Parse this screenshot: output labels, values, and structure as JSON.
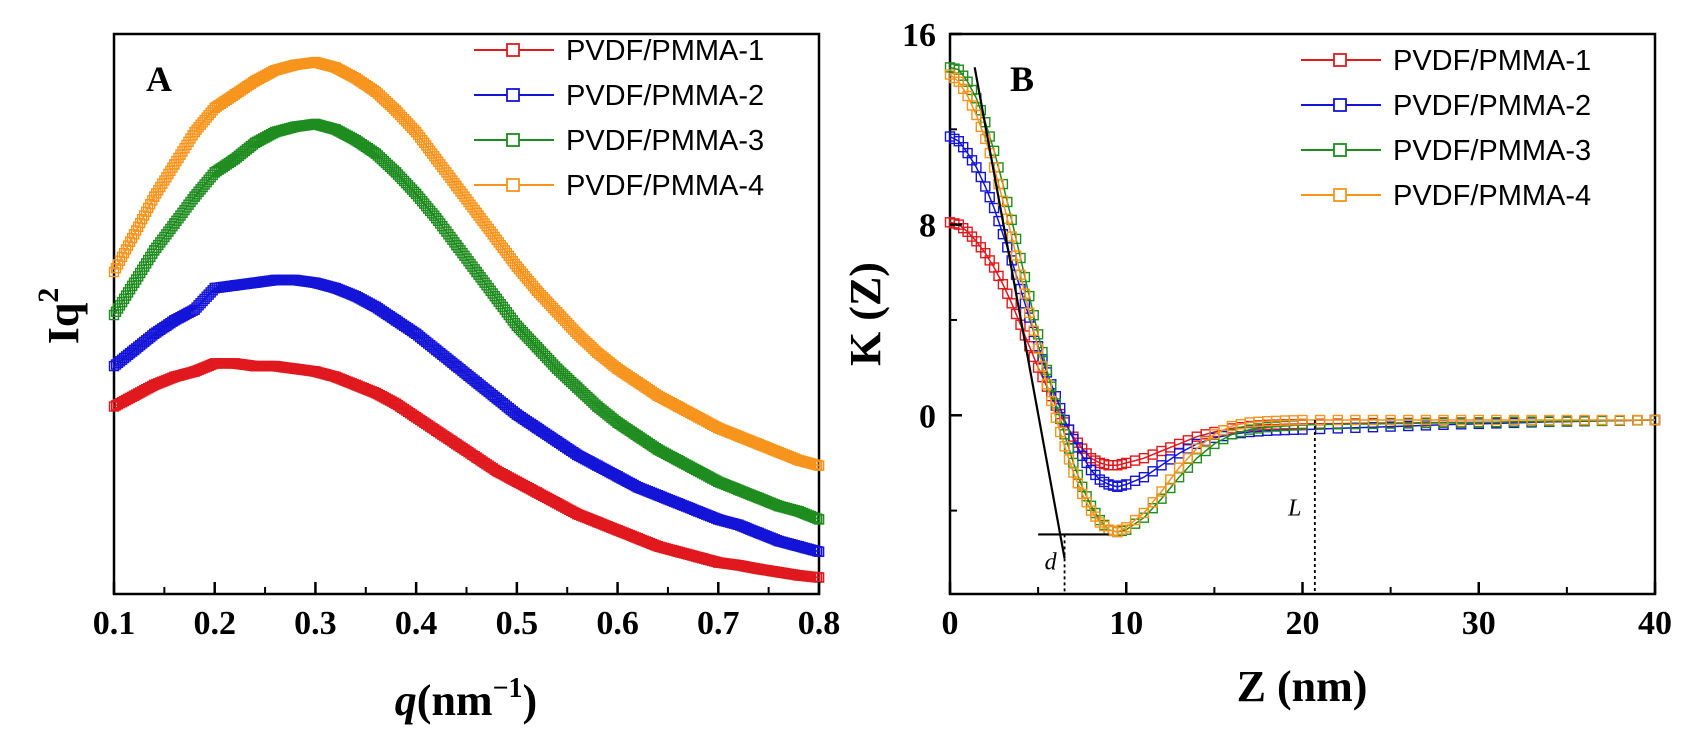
{
  "chart_data": [
    {
      "type": "scatter",
      "panel_label": "A",
      "xlabel_main": "q",
      "xlabel_unit": "(nm",
      "xlabel_exp": "−1",
      "xlabel_close": ")",
      "ylabel_main": "Iq",
      "ylabel_exp": "2",
      "xlim": [
        0.1,
        0.8
      ],
      "ylim": [
        0,
        1
      ],
      "yticks_shown": false,
      "xticks": [
        "0.1",
        "0.2",
        "0.3",
        "0.4",
        "0.5",
        "0.6",
        "0.7",
        "0.8"
      ],
      "legend_position": "top-right",
      "marker": "open-square",
      "series": [
        {
          "name": "PVDF/PMMA-1",
          "color": "#e0191e",
          "x": [
            0.1,
            0.12,
            0.14,
            0.16,
            0.18,
            0.2,
            0.22,
            0.24,
            0.26,
            0.28,
            0.3,
            0.32,
            0.34,
            0.36,
            0.38,
            0.4,
            0.42,
            0.44,
            0.46,
            0.48,
            0.5,
            0.52,
            0.54,
            0.56,
            0.58,
            0.6,
            0.62,
            0.64,
            0.66,
            0.68,
            0.7,
            0.72,
            0.74,
            0.76,
            0.78,
            0.8
          ],
          "y": [
            0.33,
            0.35,
            0.37,
            0.385,
            0.395,
            0.41,
            0.41,
            0.405,
            0.405,
            0.4,
            0.395,
            0.385,
            0.37,
            0.355,
            0.335,
            0.31,
            0.285,
            0.26,
            0.235,
            0.21,
            0.19,
            0.17,
            0.15,
            0.13,
            0.115,
            0.1,
            0.085,
            0.07,
            0.06,
            0.05,
            0.04,
            0.035,
            0.028,
            0.022,
            0.016,
            0.012
          ]
        },
        {
          "name": "PVDF/PMMA-2",
          "color": "#1414d8",
          "x": [
            0.1,
            0.12,
            0.14,
            0.16,
            0.18,
            0.2,
            0.22,
            0.24,
            0.26,
            0.28,
            0.3,
            0.32,
            0.34,
            0.36,
            0.38,
            0.4,
            0.42,
            0.44,
            0.46,
            0.48,
            0.5,
            0.52,
            0.54,
            0.56,
            0.58,
            0.6,
            0.62,
            0.64,
            0.66,
            0.68,
            0.7,
            0.72,
            0.74,
            0.76,
            0.78,
            0.8
          ],
          "y": [
            0.405,
            0.435,
            0.465,
            0.49,
            0.51,
            0.55,
            0.555,
            0.56,
            0.565,
            0.565,
            0.56,
            0.55,
            0.535,
            0.515,
            0.49,
            0.465,
            0.435,
            0.405,
            0.375,
            0.345,
            0.315,
            0.29,
            0.265,
            0.24,
            0.22,
            0.2,
            0.18,
            0.165,
            0.15,
            0.135,
            0.12,
            0.11,
            0.095,
            0.08,
            0.07,
            0.06
          ]
        },
        {
          "name": "PVDF/PMMA-3",
          "color": "#1e8c1e",
          "x": [
            0.1,
            0.12,
            0.14,
            0.16,
            0.18,
            0.2,
            0.22,
            0.24,
            0.26,
            0.28,
            0.3,
            0.32,
            0.34,
            0.36,
            0.38,
            0.4,
            0.42,
            0.44,
            0.46,
            0.48,
            0.5,
            0.52,
            0.54,
            0.56,
            0.58,
            0.6,
            0.62,
            0.64,
            0.66,
            0.68,
            0.7,
            0.72,
            0.74,
            0.76,
            0.78,
            0.8
          ],
          "y": [
            0.5,
            0.56,
            0.62,
            0.67,
            0.72,
            0.765,
            0.79,
            0.82,
            0.84,
            0.85,
            0.855,
            0.845,
            0.825,
            0.8,
            0.765,
            0.725,
            0.68,
            0.63,
            0.58,
            0.53,
            0.48,
            0.44,
            0.4,
            0.365,
            0.33,
            0.3,
            0.275,
            0.25,
            0.23,
            0.21,
            0.19,
            0.175,
            0.16,
            0.145,
            0.135,
            0.12
          ]
        },
        {
          "name": "PVDF/PMMA-4",
          "color": "#f7941d",
          "x": [
            0.1,
            0.12,
            0.14,
            0.16,
            0.18,
            0.2,
            0.22,
            0.24,
            0.26,
            0.28,
            0.3,
            0.32,
            0.34,
            0.36,
            0.38,
            0.4,
            0.42,
            0.44,
            0.46,
            0.48,
            0.5,
            0.52,
            0.54,
            0.56,
            0.58,
            0.6,
            0.62,
            0.64,
            0.66,
            0.68,
            0.7,
            0.72,
            0.74,
            0.76,
            0.78,
            0.8
          ],
          "y": [
            0.58,
            0.65,
            0.72,
            0.78,
            0.84,
            0.885,
            0.91,
            0.935,
            0.955,
            0.965,
            0.97,
            0.96,
            0.94,
            0.915,
            0.88,
            0.84,
            0.79,
            0.74,
            0.69,
            0.64,
            0.59,
            0.545,
            0.505,
            0.465,
            0.43,
            0.4,
            0.375,
            0.35,
            0.33,
            0.31,
            0.29,
            0.275,
            0.26,
            0.245,
            0.23,
            0.22
          ]
        }
      ]
    },
    {
      "type": "scatter",
      "panel_label": "B",
      "xlabel": "Z (nm)",
      "ylabel": "K (Z)",
      "xlim": [
        0,
        40
      ],
      "ylim": [
        -7.5,
        16
      ],
      "xticks": [
        "0",
        "10",
        "20",
        "30",
        "40"
      ],
      "yticks": [
        "0",
        "8",
        "16"
      ],
      "legend_position": "top-right",
      "marker": "open-square",
      "annotations": [
        {
          "label": "d",
          "x": 6.5
        },
        {
          "label": "L",
          "x": 20.7
        }
      ],
      "tangent_line": {
        "x": [
          1.4,
          6.5
        ],
        "y": [
          14.6,
          -6
        ]
      },
      "baseline_segment": {
        "x": [
          5,
          9
        ],
        "y": -5
      },
      "series": [
        {
          "name": "PVDF/PMMA-1",
          "color": "#e0191e",
          "x": [
            0,
            0.5,
            1,
            1.5,
            2,
            2.5,
            3,
            3.5,
            4,
            4.5,
            5,
            5.5,
            6,
            6.5,
            7,
            7.5,
            8,
            8.5,
            9,
            9.5,
            10,
            11,
            12,
            13,
            14,
            15,
            16,
            17,
            18,
            19,
            20,
            22,
            24,
            26,
            28,
            30,
            32,
            34,
            36,
            38,
            40
          ],
          "y": [
            8.1,
            8.0,
            7.7,
            7.3,
            6.8,
            6.2,
            5.5,
            4.7,
            3.8,
            2.9,
            2.0,
            1.2,
            0.4,
            -0.3,
            -0.9,
            -1.4,
            -1.8,
            -2.0,
            -2.1,
            -2.1,
            -2.0,
            -1.8,
            -1.5,
            -1.2,
            -0.9,
            -0.7,
            -0.55,
            -0.45,
            -0.4,
            -0.38,
            -0.36,
            -0.35,
            -0.33,
            -0.32,
            -0.3,
            -0.3,
            -0.28,
            -0.26,
            -0.24,
            -0.22,
            -0.2
          ]
        },
        {
          "name": "PVDF/PMMA-2",
          "color": "#1414d8",
          "x": [
            0,
            0.5,
            1,
            1.5,
            2,
            2.5,
            3,
            3.5,
            4,
            4.5,
            5,
            5.5,
            6,
            6.5,
            7,
            7.5,
            8,
            8.5,
            9,
            9.5,
            10,
            11,
            12,
            13,
            14,
            15,
            16,
            17,
            18,
            19,
            20,
            22,
            24,
            26,
            28,
            30,
            32,
            34,
            36,
            38,
            40
          ],
          "y": [
            11.7,
            11.5,
            11.0,
            10.4,
            9.6,
            8.7,
            7.6,
            6.5,
            5.3,
            4.1,
            2.9,
            1.8,
            0.8,
            -0.2,
            -1.0,
            -1.7,
            -2.3,
            -2.7,
            -2.9,
            -3.0,
            -2.9,
            -2.6,
            -2.1,
            -1.6,
            -1.2,
            -0.95,
            -0.8,
            -0.7,
            -0.65,
            -0.62,
            -0.6,
            -0.55,
            -0.5,
            -0.45,
            -0.4,
            -0.36,
            -0.32,
            -0.28,
            -0.25,
            -0.22,
            -0.2
          ]
        },
        {
          "name": "PVDF/PMMA-3",
          "color": "#1e8c1e",
          "x": [
            0,
            0.5,
            1,
            1.5,
            2,
            2.5,
            3,
            3.5,
            4,
            4.5,
            5,
            5.5,
            6,
            6.5,
            7,
            7.5,
            8,
            8.5,
            9,
            9.5,
            10,
            11,
            12,
            13,
            14,
            15,
            16,
            17,
            18,
            19,
            20,
            22,
            24,
            26,
            28,
            30,
            32,
            34,
            36,
            38,
            40
          ],
          "y": [
            14.6,
            14.5,
            14.0,
            13.3,
            12.3,
            11.1,
            9.7,
            8.2,
            6.6,
            5.0,
            3.4,
            1.9,
            0.5,
            -0.8,
            -2.0,
            -3.0,
            -3.8,
            -4.4,
            -4.8,
            -4.9,
            -4.8,
            -4.3,
            -3.5,
            -2.6,
            -1.8,
            -1.2,
            -0.8,
            -0.6,
            -0.5,
            -0.45,
            -0.4,
            -0.38,
            -0.36,
            -0.34,
            -0.32,
            -0.3,
            -0.28,
            -0.26,
            -0.24,
            -0.22,
            -0.2
          ]
        },
        {
          "name": "PVDF/PMMA-4",
          "color": "#f7941d",
          "x": [
            0,
            0.5,
            1,
            1.5,
            2,
            2.5,
            3,
            3.5,
            4,
            4.5,
            5,
            5.5,
            6,
            6.5,
            7,
            7.5,
            8,
            8.5,
            9,
            9.5,
            10,
            11,
            12,
            13,
            14,
            15,
            16,
            17,
            18,
            19,
            20,
            22,
            24,
            26,
            28,
            30,
            32,
            34,
            36,
            38,
            40
          ],
          "y": [
            14.3,
            14.0,
            13.4,
            12.6,
            11.6,
            10.4,
            9.0,
            7.5,
            5.9,
            4.3,
            2.8,
            1.3,
            -0.1,
            -1.3,
            -2.4,
            -3.3,
            -4.0,
            -4.5,
            -4.8,
            -4.9,
            -4.7,
            -4.1,
            -3.2,
            -2.2,
            -1.4,
            -0.8,
            -0.45,
            -0.3,
            -0.25,
            -0.22,
            -0.2,
            -0.2,
            -0.2,
            -0.2,
            -0.2,
            -0.2,
            -0.2,
            -0.2,
            -0.2,
            -0.2,
            -0.2
          ]
        }
      ]
    }
  ]
}
